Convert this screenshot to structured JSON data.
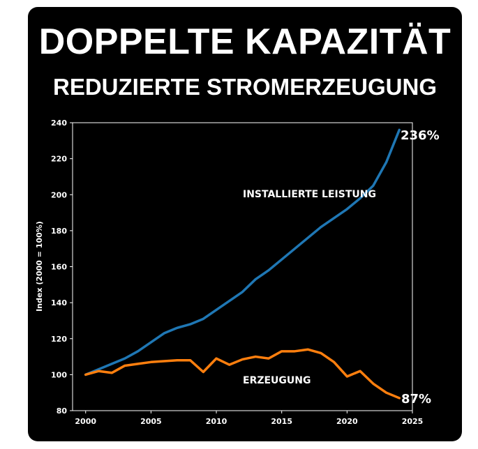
{
  "header": {
    "title": "DOPPELTE KAPAZITÄT",
    "subtitle": "REDUZIERTE STROMERZEUGUNG"
  },
  "colors": {
    "background": "#000000",
    "text": "#ffffff",
    "capacity_line": "#1f77b4",
    "generation_line": "#ff7f0e"
  },
  "chart_data": {
    "type": "line",
    "ylabel": "Index (2000 = 100%)",
    "xlabel": "",
    "xlim": [
      1999,
      2025
    ],
    "ylim": [
      80,
      240
    ],
    "xticks": [
      2000,
      2005,
      2010,
      2015,
      2020,
      2025
    ],
    "yticks": [
      80,
      100,
      120,
      140,
      160,
      180,
      200,
      220,
      240
    ],
    "grid": false,
    "x": [
      2000,
      2001,
      2002,
      2003,
      2004,
      2005,
      2006,
      2007,
      2008,
      2009,
      2010,
      2011,
      2012,
      2013,
      2014,
      2015,
      2016,
      2017,
      2018,
      2019,
      2020,
      2021,
      2022,
      2023,
      2024
    ],
    "series": [
      {
        "name": "Installierte Leistung",
        "label": "INSTALLIERTE LEISTUNG",
        "color": "#1f77b4",
        "values": [
          100,
          103,
          106,
          109,
          113,
          118,
          123,
          126,
          128,
          131,
          136,
          141,
          146,
          153,
          158,
          164,
          170,
          176,
          182,
          187,
          192,
          198,
          205,
          218,
          236
        ],
        "end_label": "236%"
      },
      {
        "name": "Erzeugung",
        "label": "ERZEUGUNG",
        "color": "#ff7f0e",
        "values": [
          100,
          102,
          101,
          105,
          106,
          107,
          107.5,
          108,
          108,
          101.5,
          109,
          105.5,
          108.5,
          110,
          109,
          113,
          113,
          114,
          112,
          107,
          99,
          102,
          95,
          90,
          87
        ],
        "end_label": "87%"
      }
    ]
  }
}
